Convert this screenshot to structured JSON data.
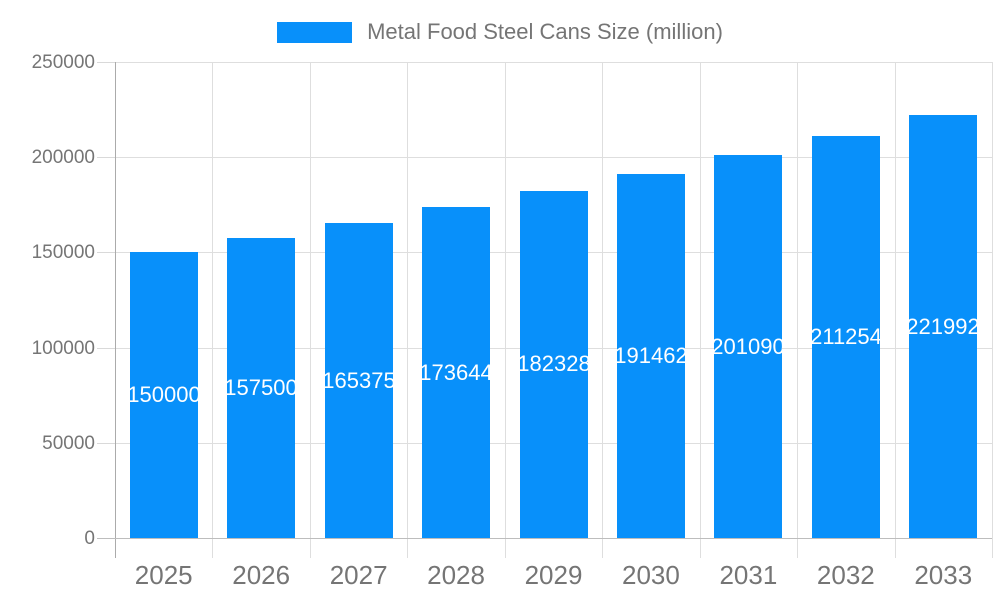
{
  "chart_data": {
    "type": "bar",
    "title": "",
    "legend_label": "Metal Food Steel Cans Size (million)",
    "legend_position": "top",
    "categories": [
      "2025",
      "2026",
      "2027",
      "2028",
      "2029",
      "2030",
      "2031",
      "2032",
      "2033"
    ],
    "series": [
      {
        "name": "Metal Food Steel Cans Size (million)",
        "values": [
          150000,
          157500,
          165375,
          173644,
          182328,
          191462,
          201090,
          211254,
          221992
        ]
      }
    ],
    "value_labels": [
      "150000",
      "157500",
      "165375",
      "173644",
      "182328",
      "191462",
      "201090",
      "211254",
      "221992"
    ],
    "xlabel": "",
    "ylabel": "",
    "ylim": [
      0,
      250000
    ],
    "yticks": [
      0,
      50000,
      100000,
      150000,
      200000,
      250000
    ],
    "ytick_labels": [
      "0",
      "50000",
      "100000",
      "150000",
      "200000",
      "250000"
    ],
    "grid": true,
    "colors": {
      "bar": "#0890fa",
      "value_label_text": "#ffffff",
      "axis_text": "#757575",
      "gridline": "#dedede",
      "axis_line": "#ababab"
    }
  }
}
